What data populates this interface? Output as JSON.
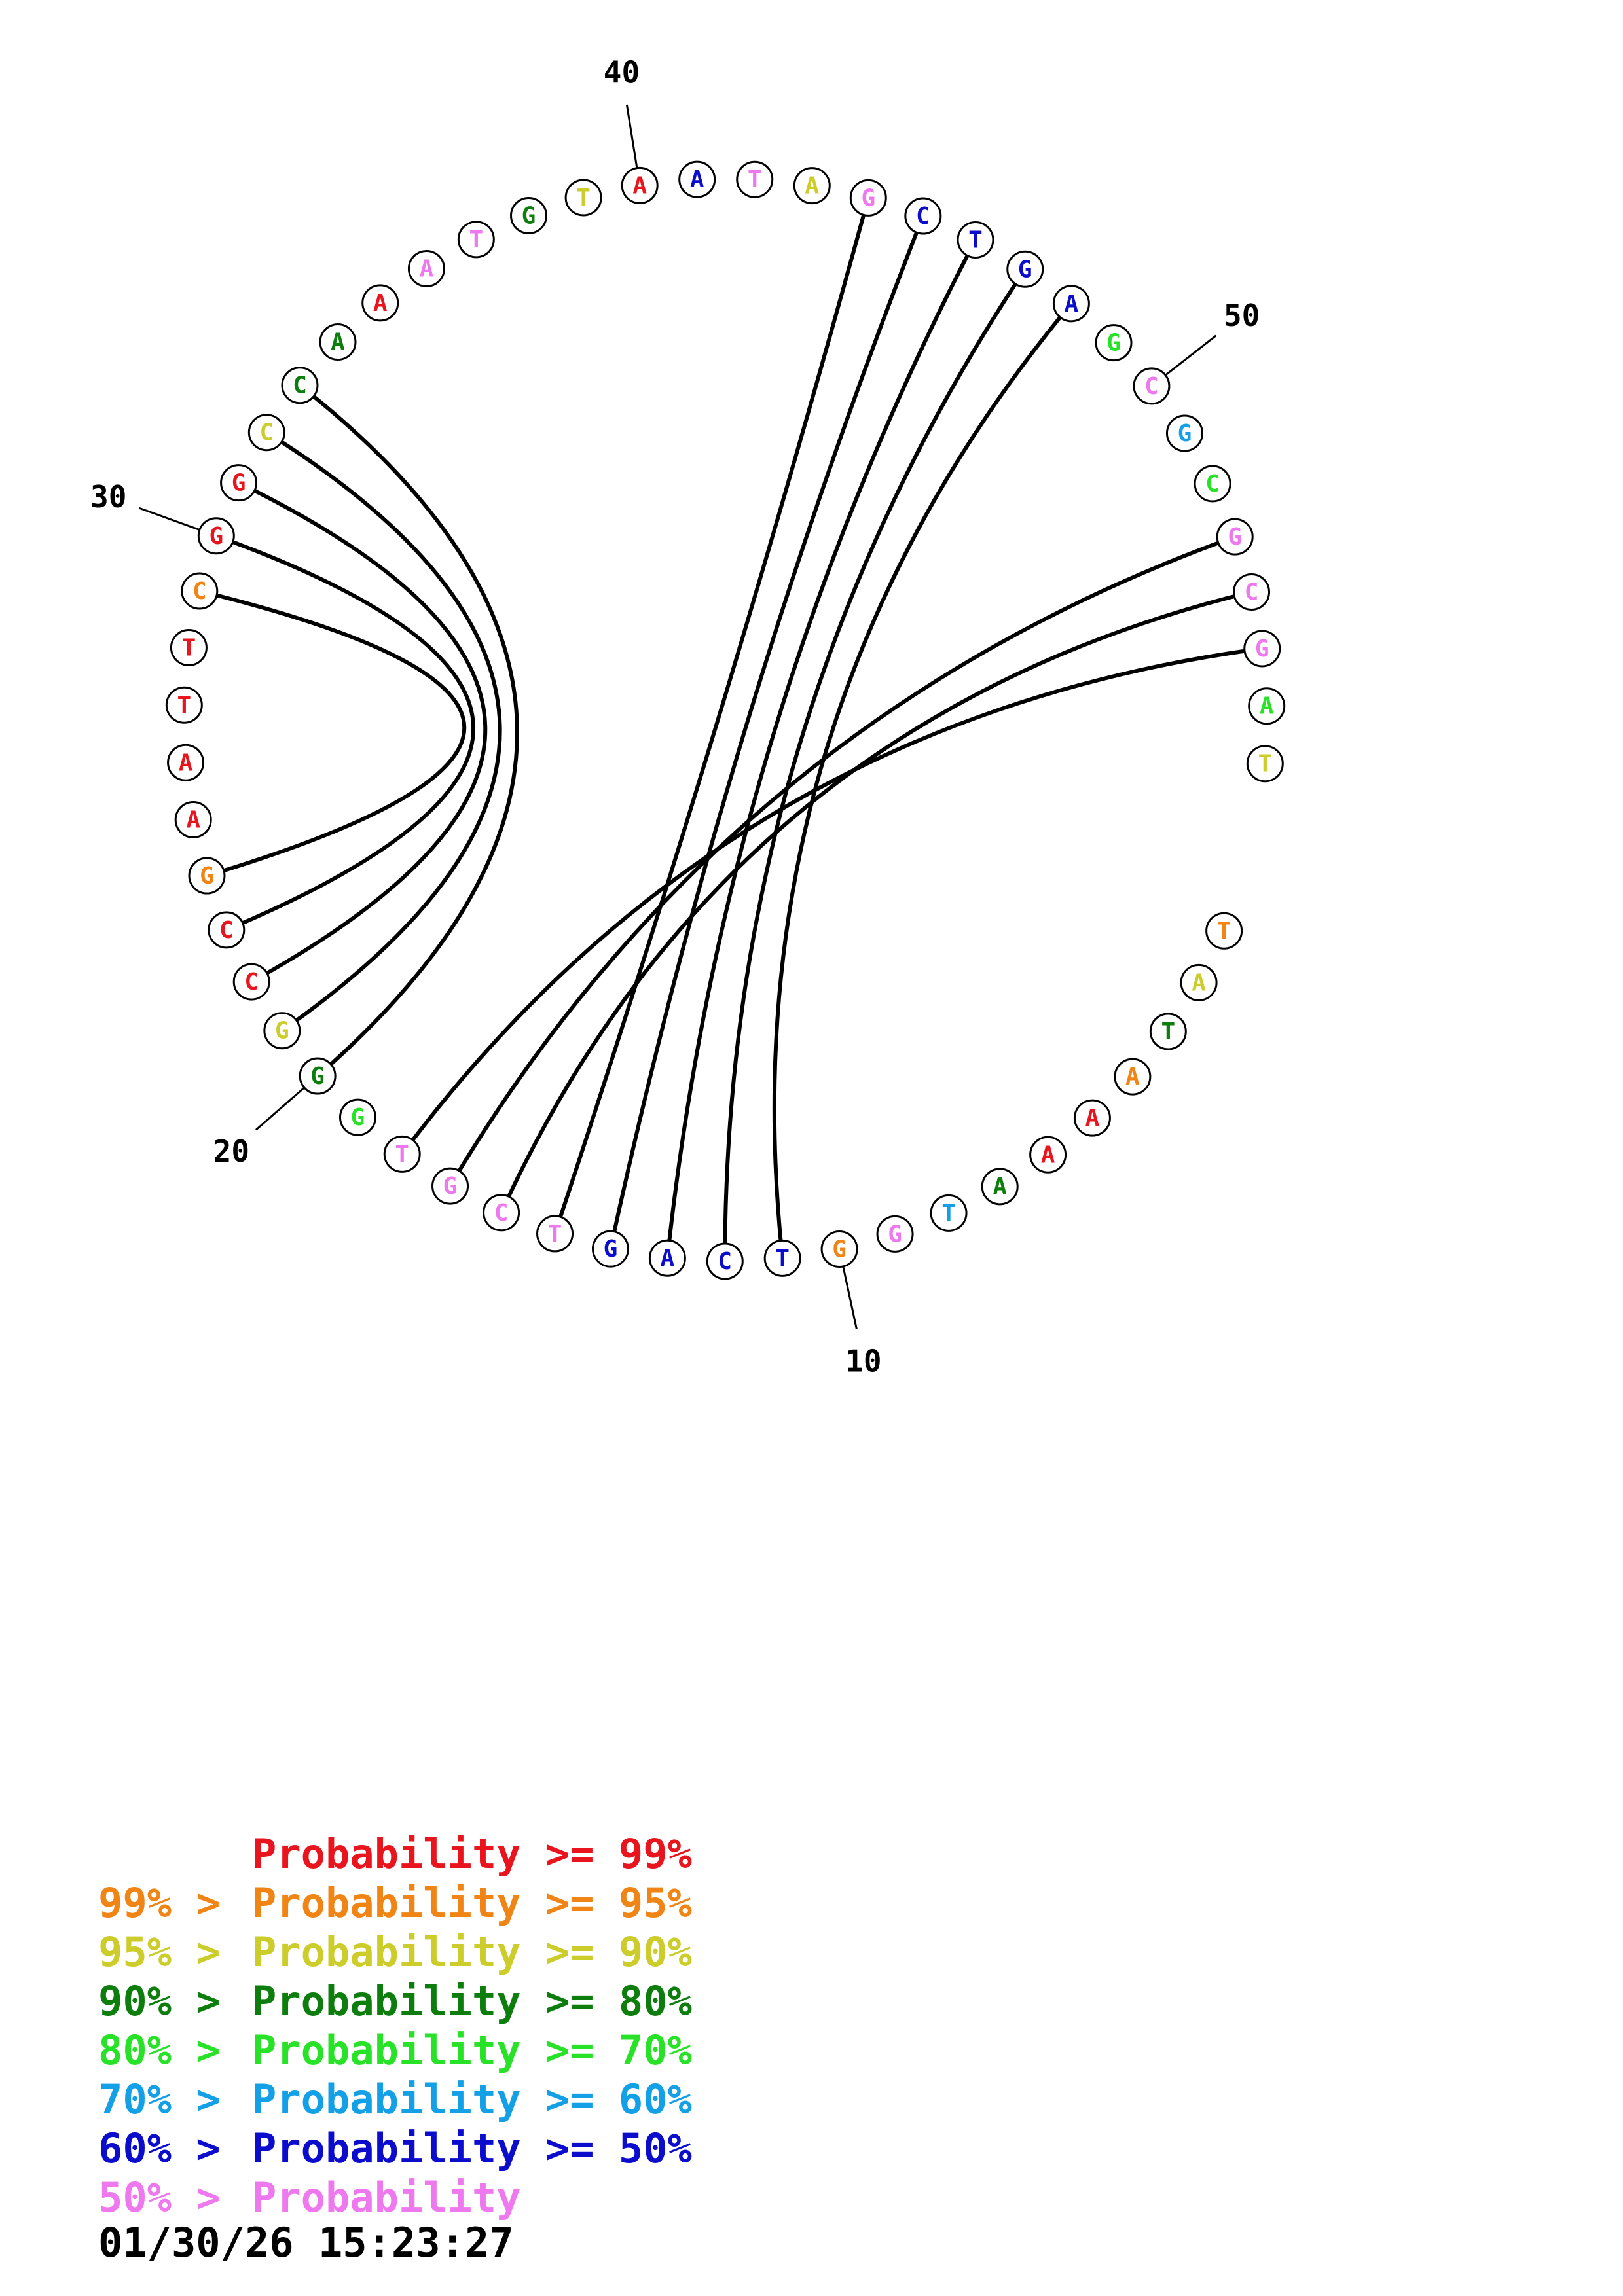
{
  "colors": {
    "red": "#e8141e",
    "orange": "#f08414",
    "yellow": "#cccc2a",
    "darkgreen": "#0d7d0d",
    "green": "#28e228",
    "skyblue": "#14a0e6",
    "blue": "#0c0ccc",
    "pink": "#ee78ee"
  },
  "sequence": [
    {
      "n": 1,
      "b": "T",
      "c": "orange"
    },
    {
      "n": 2,
      "b": "A",
      "c": "yellow"
    },
    {
      "n": 3,
      "b": "T",
      "c": "darkgreen"
    },
    {
      "n": 4,
      "b": "A",
      "c": "orange"
    },
    {
      "n": 5,
      "b": "A",
      "c": "red"
    },
    {
      "n": 6,
      "b": "A",
      "c": "red"
    },
    {
      "n": 7,
      "b": "A",
      "c": "darkgreen"
    },
    {
      "n": 8,
      "b": "T",
      "c": "skyblue"
    },
    {
      "n": 9,
      "b": "G",
      "c": "pink"
    },
    {
      "n": 10,
      "b": "G",
      "c": "orange"
    },
    {
      "n": 11,
      "b": "T",
      "c": "blue"
    },
    {
      "n": 12,
      "b": "C",
      "c": "blue"
    },
    {
      "n": 13,
      "b": "A",
      "c": "blue"
    },
    {
      "n": 14,
      "b": "G",
      "c": "blue"
    },
    {
      "n": 15,
      "b": "T",
      "c": "pink"
    },
    {
      "n": 16,
      "b": "C",
      "c": "pink"
    },
    {
      "n": 17,
      "b": "G",
      "c": "pink"
    },
    {
      "n": 18,
      "b": "T",
      "c": "pink"
    },
    {
      "n": 19,
      "b": "G",
      "c": "green"
    },
    {
      "n": 20,
      "b": "G",
      "c": "darkgreen"
    },
    {
      "n": 21,
      "b": "G",
      "c": "yellow"
    },
    {
      "n": 22,
      "b": "C",
      "c": "red"
    },
    {
      "n": 23,
      "b": "C",
      "c": "red"
    },
    {
      "n": 24,
      "b": "G",
      "c": "orange"
    },
    {
      "n": 25,
      "b": "A",
      "c": "red"
    },
    {
      "n": 26,
      "b": "A",
      "c": "red"
    },
    {
      "n": 27,
      "b": "T",
      "c": "red"
    },
    {
      "n": 28,
      "b": "T",
      "c": "red"
    },
    {
      "n": 29,
      "b": "C",
      "c": "orange"
    },
    {
      "n": 30,
      "b": "G",
      "c": "red"
    },
    {
      "n": 31,
      "b": "G",
      "c": "red"
    },
    {
      "n": 32,
      "b": "C",
      "c": "yellow"
    },
    {
      "n": 33,
      "b": "C",
      "c": "darkgreen"
    },
    {
      "n": 34,
      "b": "A",
      "c": "darkgreen"
    },
    {
      "n": 35,
      "b": "A",
      "c": "red"
    },
    {
      "n": 36,
      "b": "A",
      "c": "pink"
    },
    {
      "n": 37,
      "b": "T",
      "c": "pink"
    },
    {
      "n": 38,
      "b": "G",
      "c": "darkgreen"
    },
    {
      "n": 39,
      "b": "T",
      "c": "yellow"
    },
    {
      "n": 40,
      "b": "A",
      "c": "red"
    },
    {
      "n": 41,
      "b": "A",
      "c": "blue"
    },
    {
      "n": 42,
      "b": "T",
      "c": "pink"
    },
    {
      "n": 43,
      "b": "A",
      "c": "yellow"
    },
    {
      "n": 44,
      "b": "G",
      "c": "pink"
    },
    {
      "n": 45,
      "b": "C",
      "c": "blue"
    },
    {
      "n": 46,
      "b": "T",
      "c": "blue"
    },
    {
      "n": 47,
      "b": "G",
      "c": "blue"
    },
    {
      "n": 48,
      "b": "A",
      "c": "blue"
    },
    {
      "n": 49,
      "b": "G",
      "c": "green"
    },
    {
      "n": 50,
      "b": "C",
      "c": "pink"
    },
    {
      "n": 51,
      "b": "G",
      "c": "skyblue"
    },
    {
      "n": 52,
      "b": "C",
      "c": "green"
    },
    {
      "n": 53,
      "b": "G",
      "c": "pink"
    },
    {
      "n": 54,
      "b": "C",
      "c": "pink"
    },
    {
      "n": 55,
      "b": "G",
      "c": "pink"
    },
    {
      "n": 56,
      "b": "A",
      "c": "green"
    },
    {
      "n": 57,
      "b": "T",
      "c": "yellow"
    }
  ],
  "pairs": [
    [
      11,
      48
    ],
    [
      12,
      47
    ],
    [
      13,
      46
    ],
    [
      14,
      45
    ],
    [
      15,
      44
    ],
    [
      16,
      54
    ],
    [
      17,
      53
    ],
    [
      18,
      55
    ],
    [
      20,
      33
    ],
    [
      21,
      32
    ],
    [
      22,
      31
    ],
    [
      23,
      30
    ],
    [
      24,
      29
    ]
  ],
  "numbers": [
    "10",
    "20",
    "30",
    "40",
    "50"
  ],
  "legend": [
    {
      "prefix": "",
      "text": "Probability >= 99%",
      "c": "red"
    },
    {
      "prefix": "99% > ",
      "text": "Probability >= 95%",
      "c": "orange"
    },
    {
      "prefix": "95% > ",
      "text": "Probability >= 90%",
      "c": "yellow"
    },
    {
      "prefix": "90% > ",
      "text": "Probability >= 80%",
      "c": "darkgreen"
    },
    {
      "prefix": "80% > ",
      "text": "Probability >= 70%",
      "c": "green"
    },
    {
      "prefix": "70% > ",
      "text": "Probability >= 60%",
      "c": "skyblue"
    },
    {
      "prefix": "60% > ",
      "text": "Probability >= 50%",
      "c": "blue"
    },
    {
      "prefix": "50% > ",
      "text": "Probability",
      "c": "pink"
    }
  ],
  "timestamp": "01/30/26 15:23:27"
}
